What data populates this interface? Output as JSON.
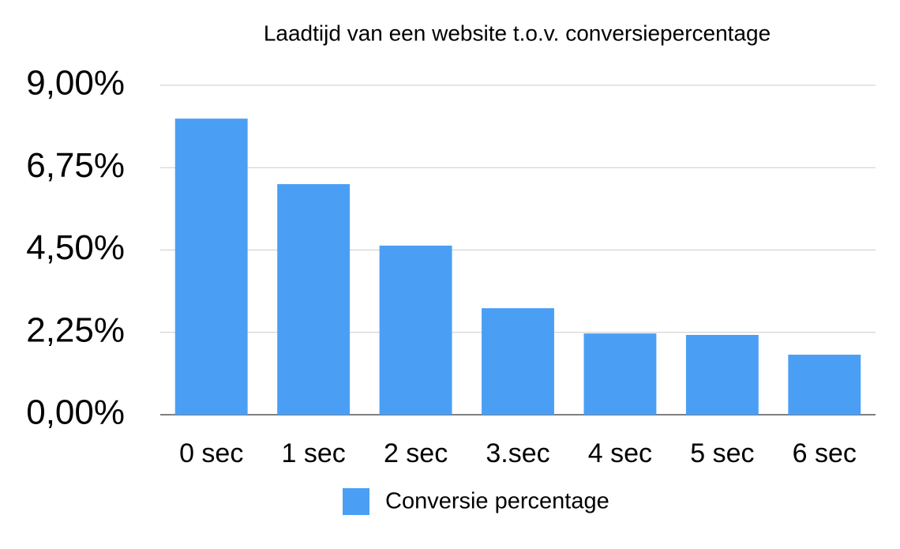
{
  "chart_data": {
    "type": "bar",
    "title": "Laadtijd van een website t.o.v. conversiepercentage",
    "categories": [
      "0 sec",
      "1 sec",
      "2 sec",
      "3.sec",
      "4 sec",
      "5 sec",
      "6 sec"
    ],
    "series": [
      {
        "name": "Conversie percentage",
        "color": "#4a9ff5",
        "values": [
          8.09,
          6.3,
          4.62,
          2.91,
          2.22,
          2.18,
          1.64
        ]
      }
    ],
    "ylim": [
      0,
      9
    ],
    "yticks": [
      {
        "value": 0,
        "label": "0,00%"
      },
      {
        "value": 2.25,
        "label": "2,25%"
      },
      {
        "value": 4.5,
        "label": "4,50%"
      },
      {
        "value": 6.75,
        "label": "6,75%"
      },
      {
        "value": 9,
        "label": "9,00%"
      }
    ],
    "grid": true,
    "legend": "bottom"
  }
}
